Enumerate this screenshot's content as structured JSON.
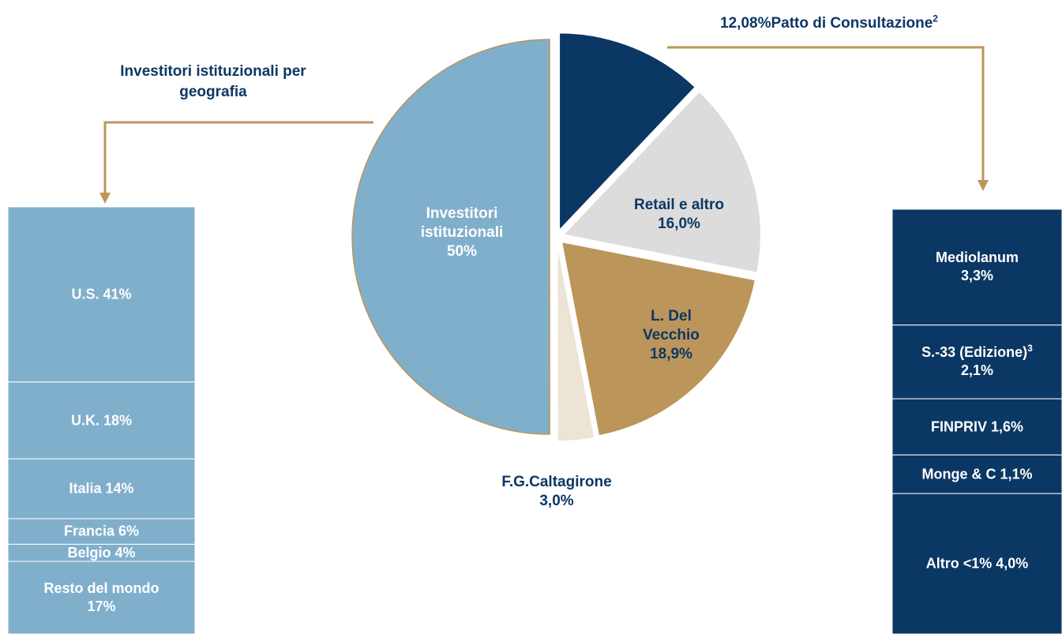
{
  "chart_data": [
    {
      "type": "pie",
      "categories": [
        "Patto di Consultazione",
        "Retail e altro",
        "L. Del Vecchio",
        "F.G.Caltagirone",
        "Investitori istituzionali"
      ],
      "values": [
        12.08,
        16.0,
        18.9,
        3.0,
        50
      ],
      "value_labels": [
        "12,08%",
        "16,0%",
        "18,9%",
        "3,0%",
        "50%"
      ],
      "notes": [
        "2",
        null,
        null,
        null,
        null
      ],
      "colors": [
        "#0b3764",
        "#dcdcdc",
        "#bb955a",
        "#ece4d4",
        "#80afcc"
      ],
      "edge_color": "#bb955a"
    },
    {
      "type": "stacked_bar",
      "title": "Investitori istituzionali per geografia",
      "categories": [
        "U.S.",
        "U.K.",
        "Italia",
        "Francia",
        "Belgio",
        "Resto del mondo"
      ],
      "values": [
        41,
        18,
        14,
        6,
        4,
        17
      ],
      "value_labels": [
        "41%",
        "18%",
        "14%",
        "6%",
        "4%",
        "17%"
      ],
      "color": "#80afcc"
    },
    {
      "type": "stacked_bar",
      "categories": [
        "Mediolanum",
        "S.-33 (Edizione)",
        "FINPRIV",
        "Monge & C",
        "Altro <1%"
      ],
      "values": [
        3.3,
        2.1,
        1.6,
        1.1,
        4.0
      ],
      "value_labels": [
        "3,3%",
        "2,1%",
        "1,6%",
        "1,1%",
        "4,0%"
      ],
      "notes": [
        null,
        "3",
        null,
        null,
        null
      ],
      "color": "#0b3764"
    }
  ]
}
